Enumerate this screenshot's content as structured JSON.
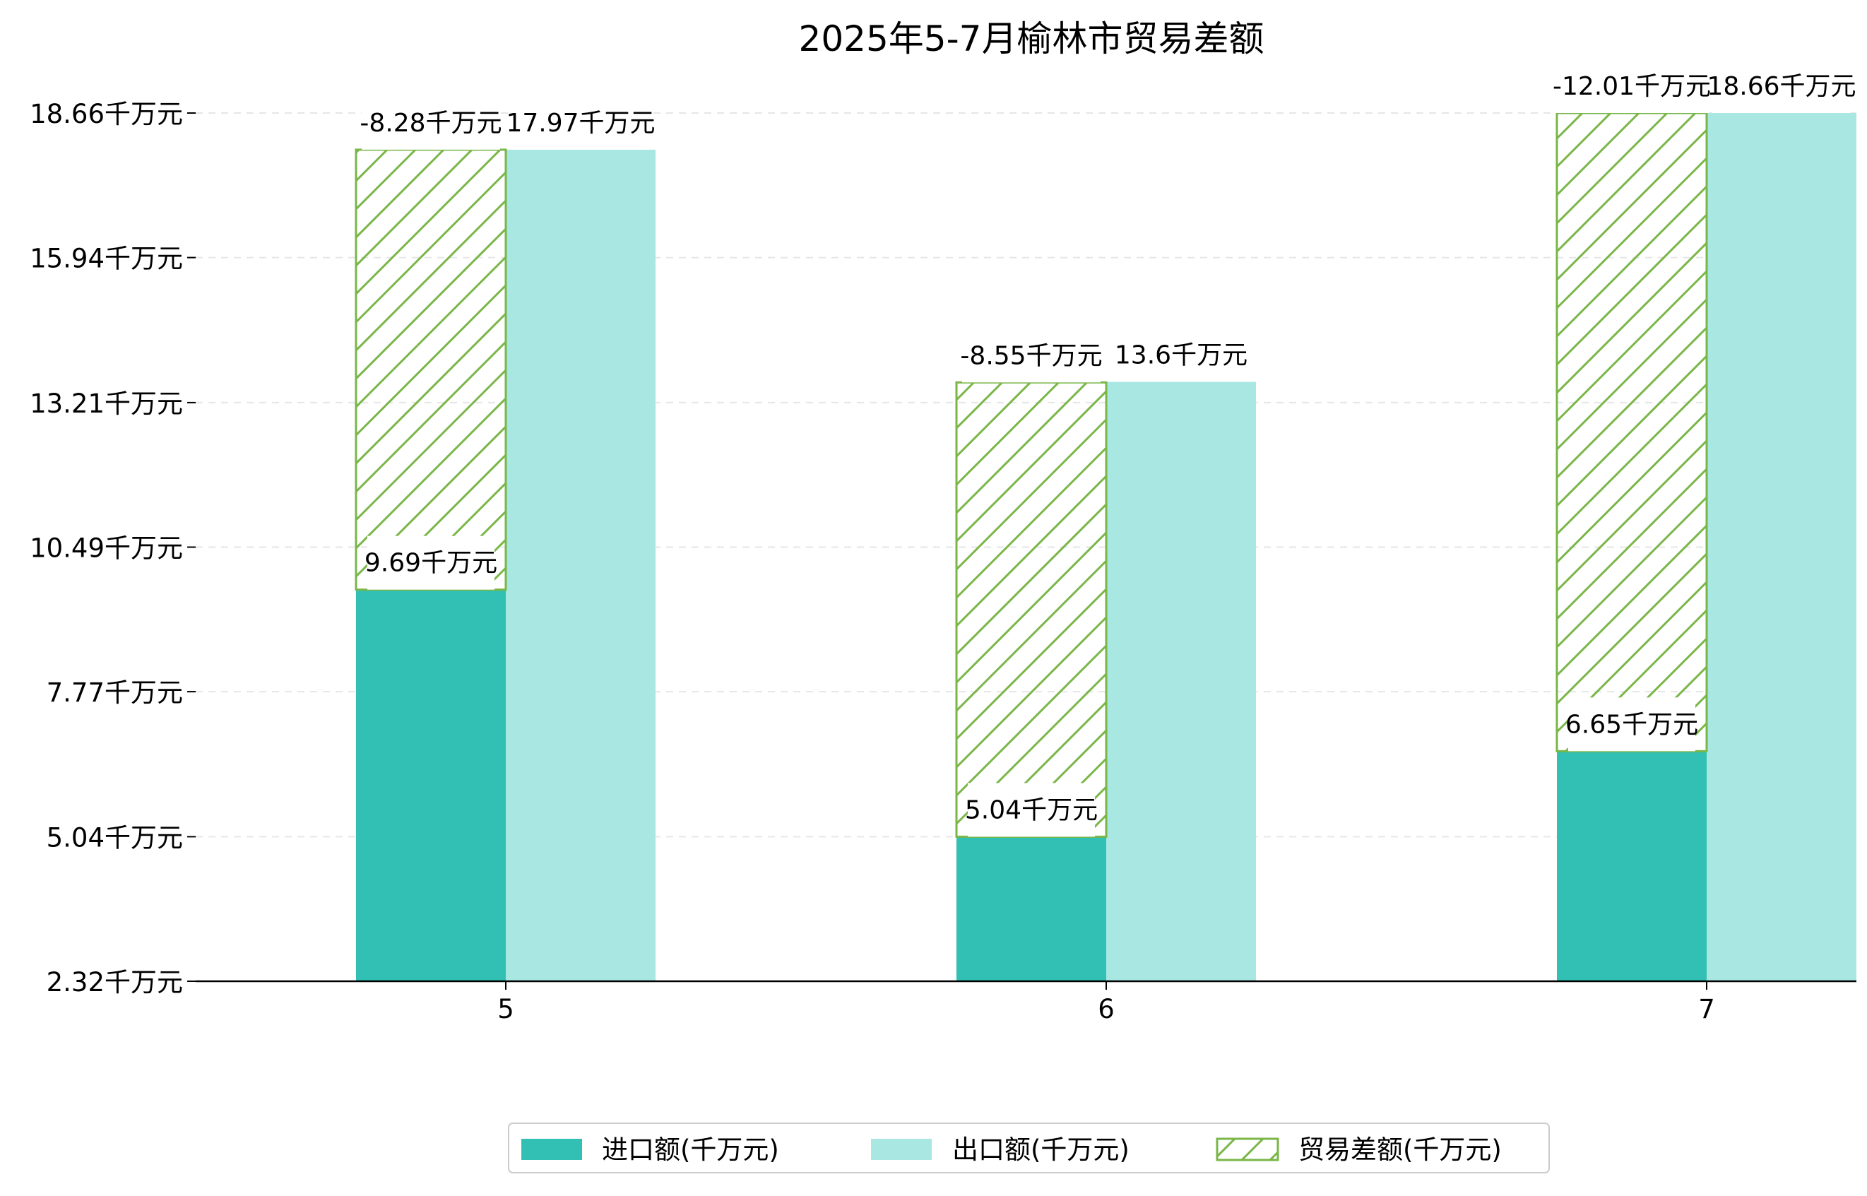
{
  "chart_data": {
    "type": "bar",
    "title": "2025年5-7月榆林市贸易差额",
    "categories": [
      "5",
      "6",
      "7"
    ],
    "ylim": [
      2.32,
      18.66
    ],
    "y_ticks": [
      "2.32千万元",
      "5.04千万元",
      "7.77千万元",
      "10.49千万元",
      "13.21千万元",
      "15.94千万元",
      "18.66千万元"
    ],
    "y_tick_values": [
      2.32,
      5.04,
      7.77,
      10.49,
      13.21,
      15.94,
      18.66
    ],
    "grid": true,
    "legend_position": "bottom",
    "series": [
      {
        "name": "进口额(千万元)",
        "values": [
          9.69,
          5.04,
          6.65
        ],
        "labels": [
          "9.69千万元",
          "5.04千万元",
          "6.65千万元"
        ],
        "color": "#31c0b3"
      },
      {
        "name": "出口额(千万元)",
        "values": [
          17.97,
          13.6,
          18.66
        ],
        "labels": [
          "17.97千万元",
          "13.6千万元",
          "18.66千万元"
        ],
        "color": "#a8e7e2"
      },
      {
        "name": "贸易差额(千万元)",
        "values": [
          -8.28,
          -8.55,
          -12.01
        ],
        "labels": [
          "-8.28千万元",
          "-8.55千万元",
          "-12.01千万元"
        ],
        "color": "#7ab648",
        "pattern": "hatch"
      }
    ]
  }
}
